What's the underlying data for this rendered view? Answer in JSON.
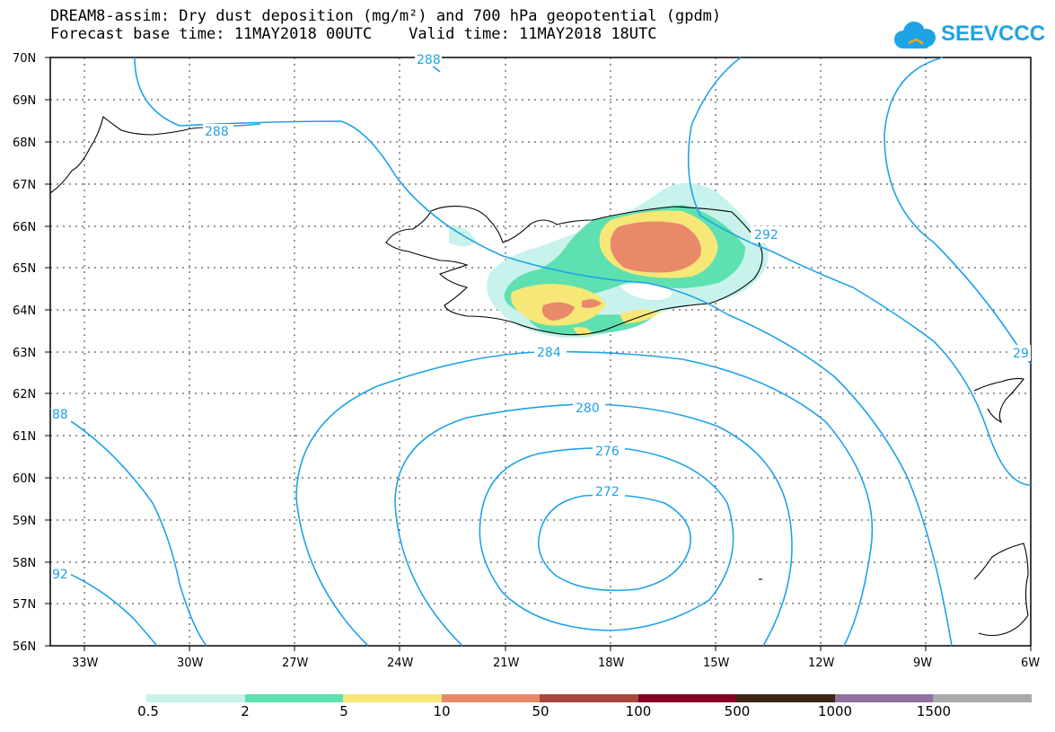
{
  "title": {
    "line1": "DREAM8-assim: Dry dust deposition (mg/m²) and 700 hPa geopotential (gpdm)",
    "line2": "Forecast base time: 11MAY2018 00UTC    Valid time: 11MAY2018 18UTC"
  },
  "logo": {
    "text": "SEEVCCC",
    "icon": "cloud-icon",
    "color": "#1fa3e6"
  },
  "map": {
    "lat_labels": [
      "70N",
      "69N",
      "68N",
      "67N",
      "66N",
      "65N",
      "64N",
      "63N",
      "62N",
      "61N",
      "60N",
      "59N",
      "58N",
      "57N",
      "56N"
    ],
    "lon_labels": [
      "33W",
      "30W",
      "27W",
      "24W",
      "21W",
      "18W",
      "15W",
      "12W",
      "9W",
      "6W"
    ],
    "contour_labels": [
      "288",
      "288",
      "292",
      "284",
      "280",
      "276",
      "272",
      "29",
      "88",
      "92"
    ],
    "contour_color": "#1fa3e6",
    "contour_units": "gpdm"
  },
  "colorbar": {
    "colors": [
      "#c8f2ec",
      "#5ee0b0",
      "#f6e777",
      "#e8896a",
      "#a8483f",
      "#820024",
      "#3d2513",
      "#92709e",
      "#a9a9a9"
    ],
    "labels": [
      "0.5",
      "2",
      "5",
      "10",
      "50",
      "100",
      "500",
      "1000",
      "1500"
    ]
  }
}
